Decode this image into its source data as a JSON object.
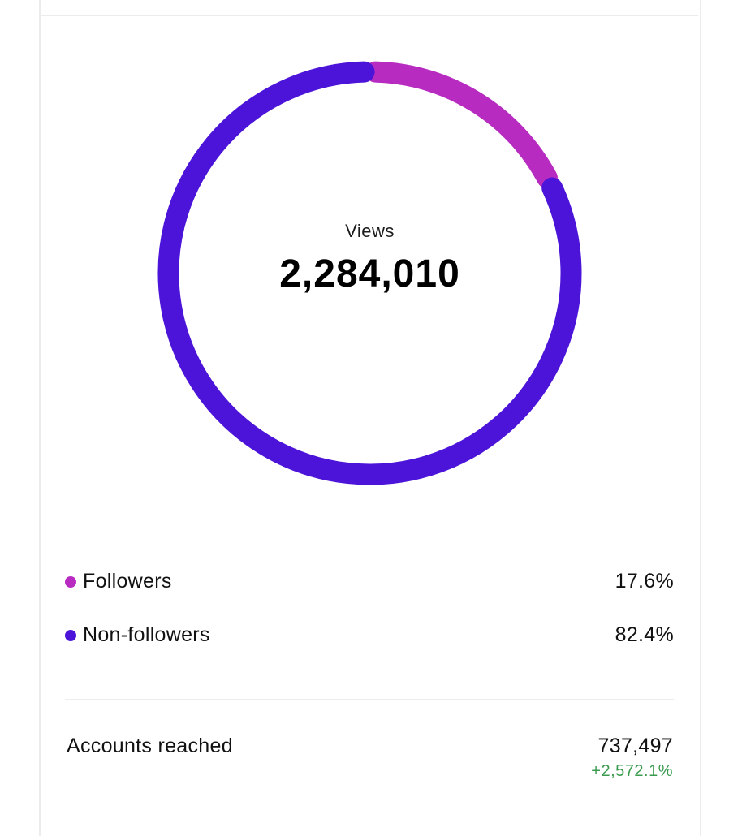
{
  "colors": {
    "followers": "#b72bc1",
    "non_followers": "#4c14d9",
    "positive_change": "#3a9b4f"
  },
  "chart_data": {
    "type": "pie",
    "variant": "donut",
    "center_label": "Views",
    "center_value": "2,284,010",
    "total": 2284010,
    "slices": [
      {
        "name": "Followers",
        "value": 17.6,
        "label": "17.6%",
        "color": "#b72bc1"
      },
      {
        "name": "Non-followers",
        "value": 82.4,
        "label": "82.4%",
        "color": "#4c14d9"
      }
    ]
  },
  "metrics": {
    "accounts_reached": {
      "label": "Accounts reached",
      "value": "737,497",
      "change": "+2,572.1%"
    }
  }
}
